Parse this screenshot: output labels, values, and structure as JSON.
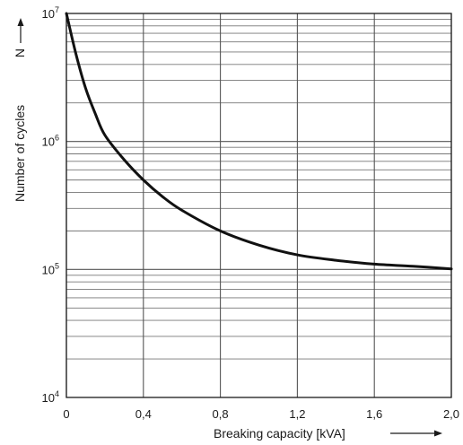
{
  "chart_data": {
    "type": "line",
    "title": "",
    "xlabel": "Breaking capacity [kVA]",
    "ylabel": "Number of cycles",
    "ylabel_symbol": "N",
    "xlim": [
      0,
      2.0
    ],
    "ylim": [
      10000,
      10000000
    ],
    "yscale": "log",
    "grid": true,
    "legend": "none",
    "x_ticks": [
      "0",
      "0,4",
      "0,8",
      "1,2",
      "1,6",
      "2,0"
    ],
    "x_tick_values": [
      0,
      0.4,
      0.8,
      1.2,
      1.6,
      2.0
    ],
    "y_ticks": [
      {
        "value": 10000,
        "base": "10",
        "exp": "4"
      },
      {
        "value": 100000,
        "base": "10",
        "exp": "5"
      },
      {
        "value": 1000000,
        "base": "10",
        "exp": "6"
      },
      {
        "value": 10000000,
        "base": "10",
        "exp": "7"
      }
    ],
    "series": [
      {
        "x": [
          0,
          0.05,
          0.1,
          0.15,
          0.2,
          0.3,
          0.4,
          0.5,
          0.6,
          0.8,
          1.0,
          1.2,
          1.4,
          1.6,
          1.8,
          2.0
        ],
        "y": [
          10000000,
          4800000,
          2600000,
          1650000,
          1120000,
          720000,
          500000,
          370000,
          290000,
          200000,
          155000,
          130000,
          118000,
          110000,
          106000,
          101000
        ]
      }
    ],
    "colors": {
      "line": "#111111",
      "grid": "#4d4d4d",
      "text": "#1a1a1a"
    }
  }
}
